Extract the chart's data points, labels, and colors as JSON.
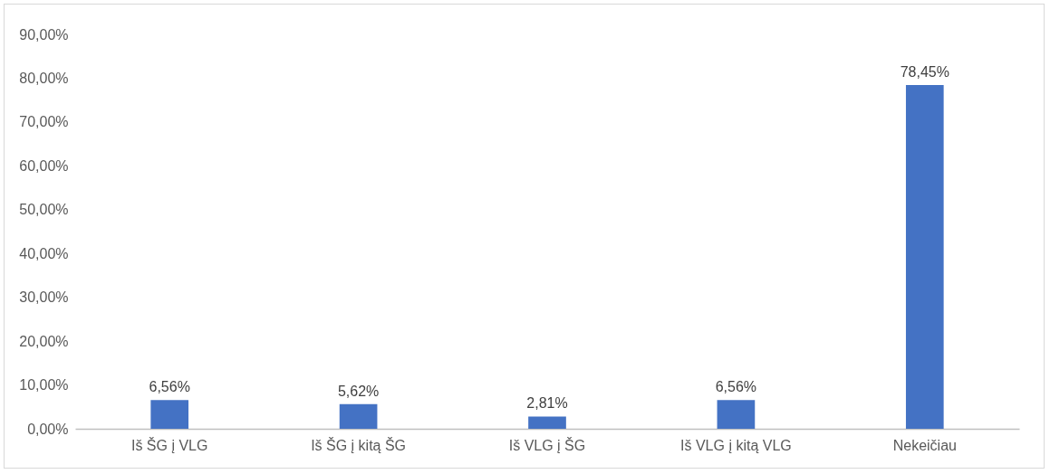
{
  "chart_data": {
    "type": "bar",
    "categories": [
      "Iš ŠG į VLG",
      "Iš ŠG į kitą ŠG",
      "Iš VLG į ŠG",
      "Iš VLG į kitą VLG",
      "Nekeičiau"
    ],
    "values": [
      6.56,
      5.62,
      2.81,
      6.56,
      78.45
    ],
    "value_labels": [
      "6,56%",
      "5,62%",
      "2,81%",
      "6,56%",
      "78,45%"
    ],
    "color": "#4472c4",
    "ylim": [
      0,
      90
    ],
    "yticks": [
      {
        "value": 0,
        "label": "0,00%"
      },
      {
        "value": 10,
        "label": "10,00%"
      },
      {
        "value": 20,
        "label": "20,00%"
      },
      {
        "value": 30,
        "label": "30,00%"
      },
      {
        "value": 40,
        "label": "40,00%"
      },
      {
        "value": 50,
        "label": "50,00%"
      },
      {
        "value": 60,
        "label": "60,00%"
      },
      {
        "value": 70,
        "label": "70,00%"
      },
      {
        "value": 80,
        "label": "80,00%"
      },
      {
        "value": 90,
        "label": "90,00%"
      }
    ],
    "grid": false
  }
}
